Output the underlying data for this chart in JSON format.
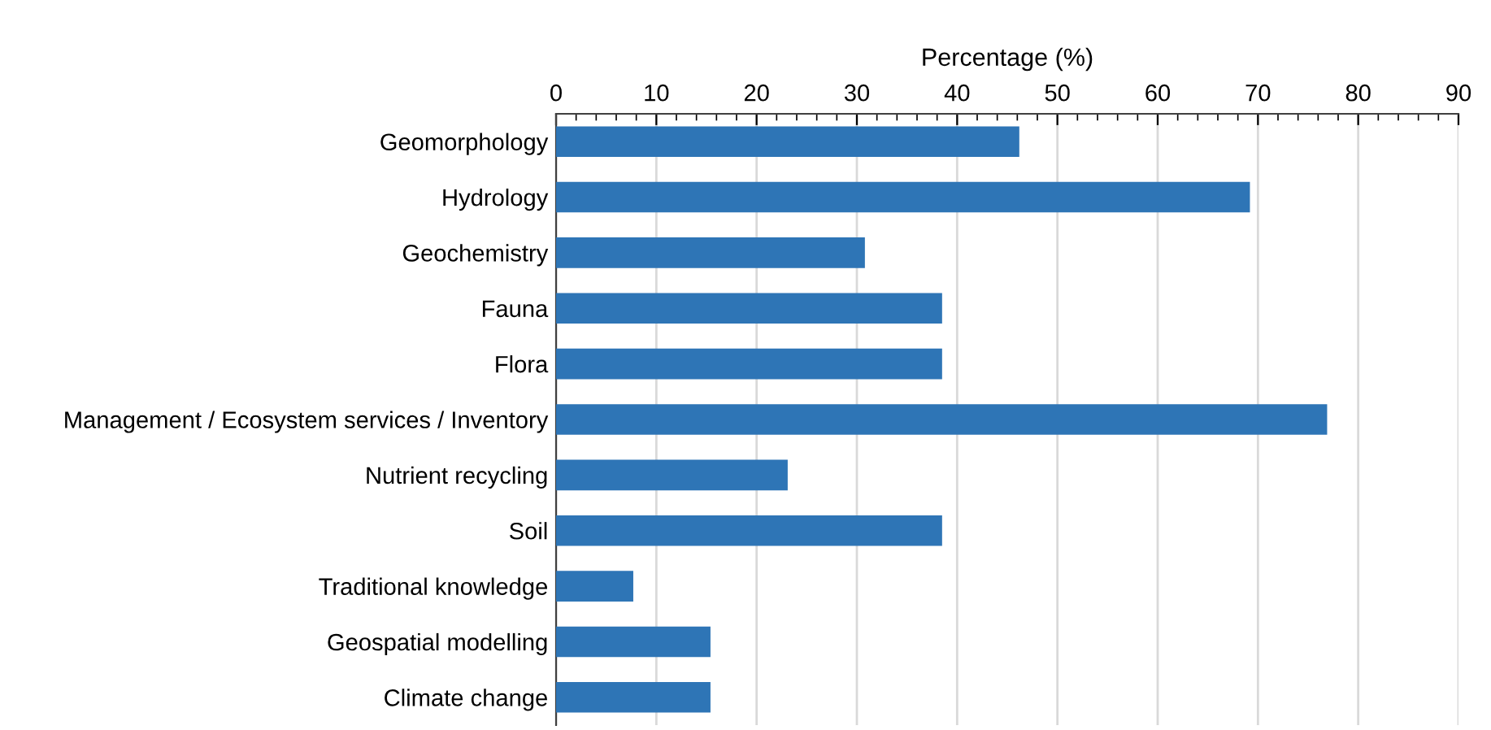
{
  "chart_data": {
    "type": "bar",
    "orientation": "horizontal",
    "xlabel": "Percentage (%)",
    "categories": [
      "Geomorphology",
      "Hydrology",
      "Geochemistry",
      "Fauna",
      "Flora",
      "Management / Ecosystem services / Inventory",
      "Nutrient recycling",
      "Soil",
      "Traditional knowledge",
      "Geospatial modelling",
      "Climate change"
    ],
    "values": [
      46.2,
      69.2,
      30.8,
      38.5,
      38.5,
      76.9,
      23.1,
      38.5,
      7.7,
      15.4,
      15.4
    ],
    "color": "#2e75b6",
    "xlim": [
      0,
      90
    ],
    "xticks": [
      0,
      10,
      20,
      30,
      40,
      50,
      60,
      70,
      80,
      90
    ],
    "grid": "x"
  }
}
